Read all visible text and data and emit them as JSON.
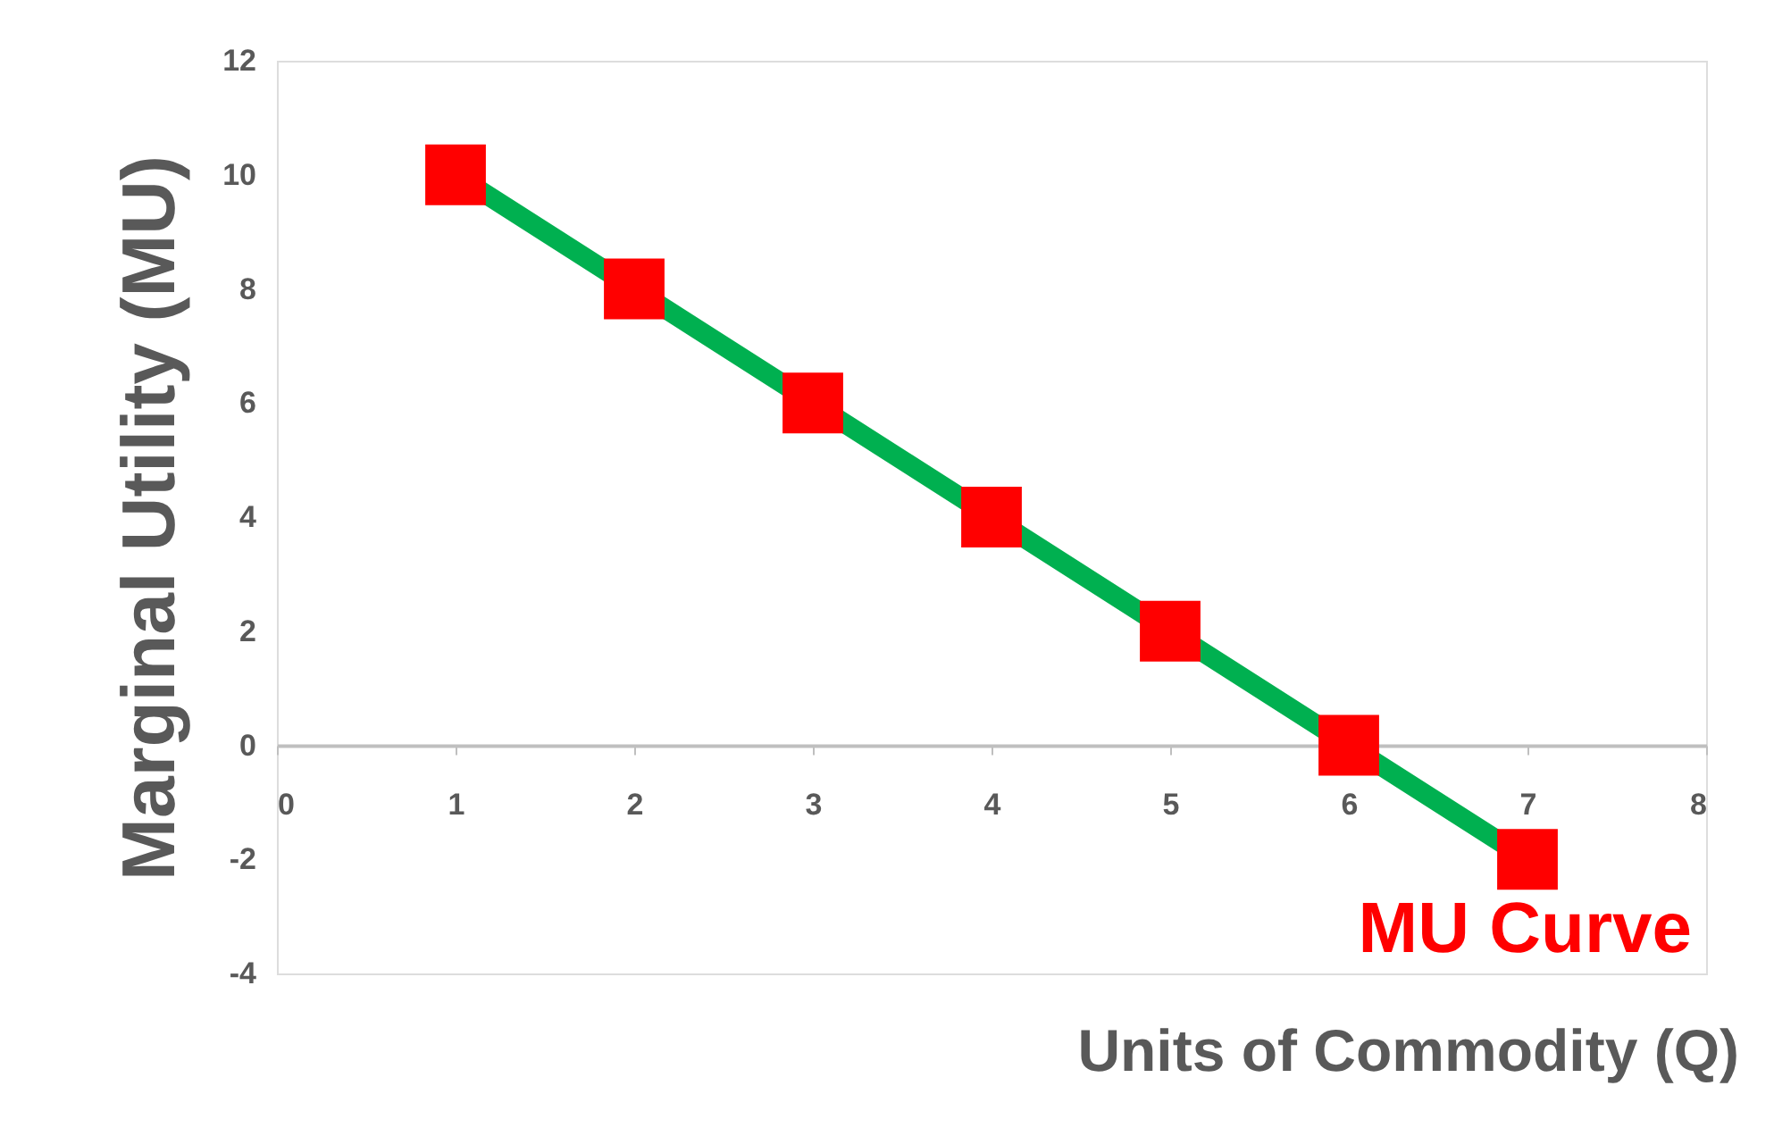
{
  "chart_data": {
    "type": "line",
    "xlabel": "Units of Commodity (Q)",
    "ylabel": "Marginal Utility (MU)",
    "x": [
      1,
      2,
      3,
      4,
      5,
      6,
      7
    ],
    "series": [
      {
        "color": "#00b050",
        "colors": [
          "#ff0000",
          "#ff0000",
          "#ff0000",
          "#ff0000",
          "#ff0000",
          "#ff0000",
          "#ff0000"
        ],
        "values": [
          10,
          8,
          6,
          4,
          2,
          0,
          -2
        ]
      }
    ],
    "marker": "square",
    "line_style": "solid",
    "xlim": [
      0,
      8
    ],
    "xticks": [
      0,
      1,
      2,
      3,
      4,
      5,
      6,
      7,
      8
    ],
    "ylim": [
      -4,
      12
    ],
    "yticks": [
      -4,
      -2,
      0,
      2,
      4,
      6,
      8,
      10,
      12
    ],
    "grid": false,
    "annotations": [
      "MU Curve"
    ]
  }
}
